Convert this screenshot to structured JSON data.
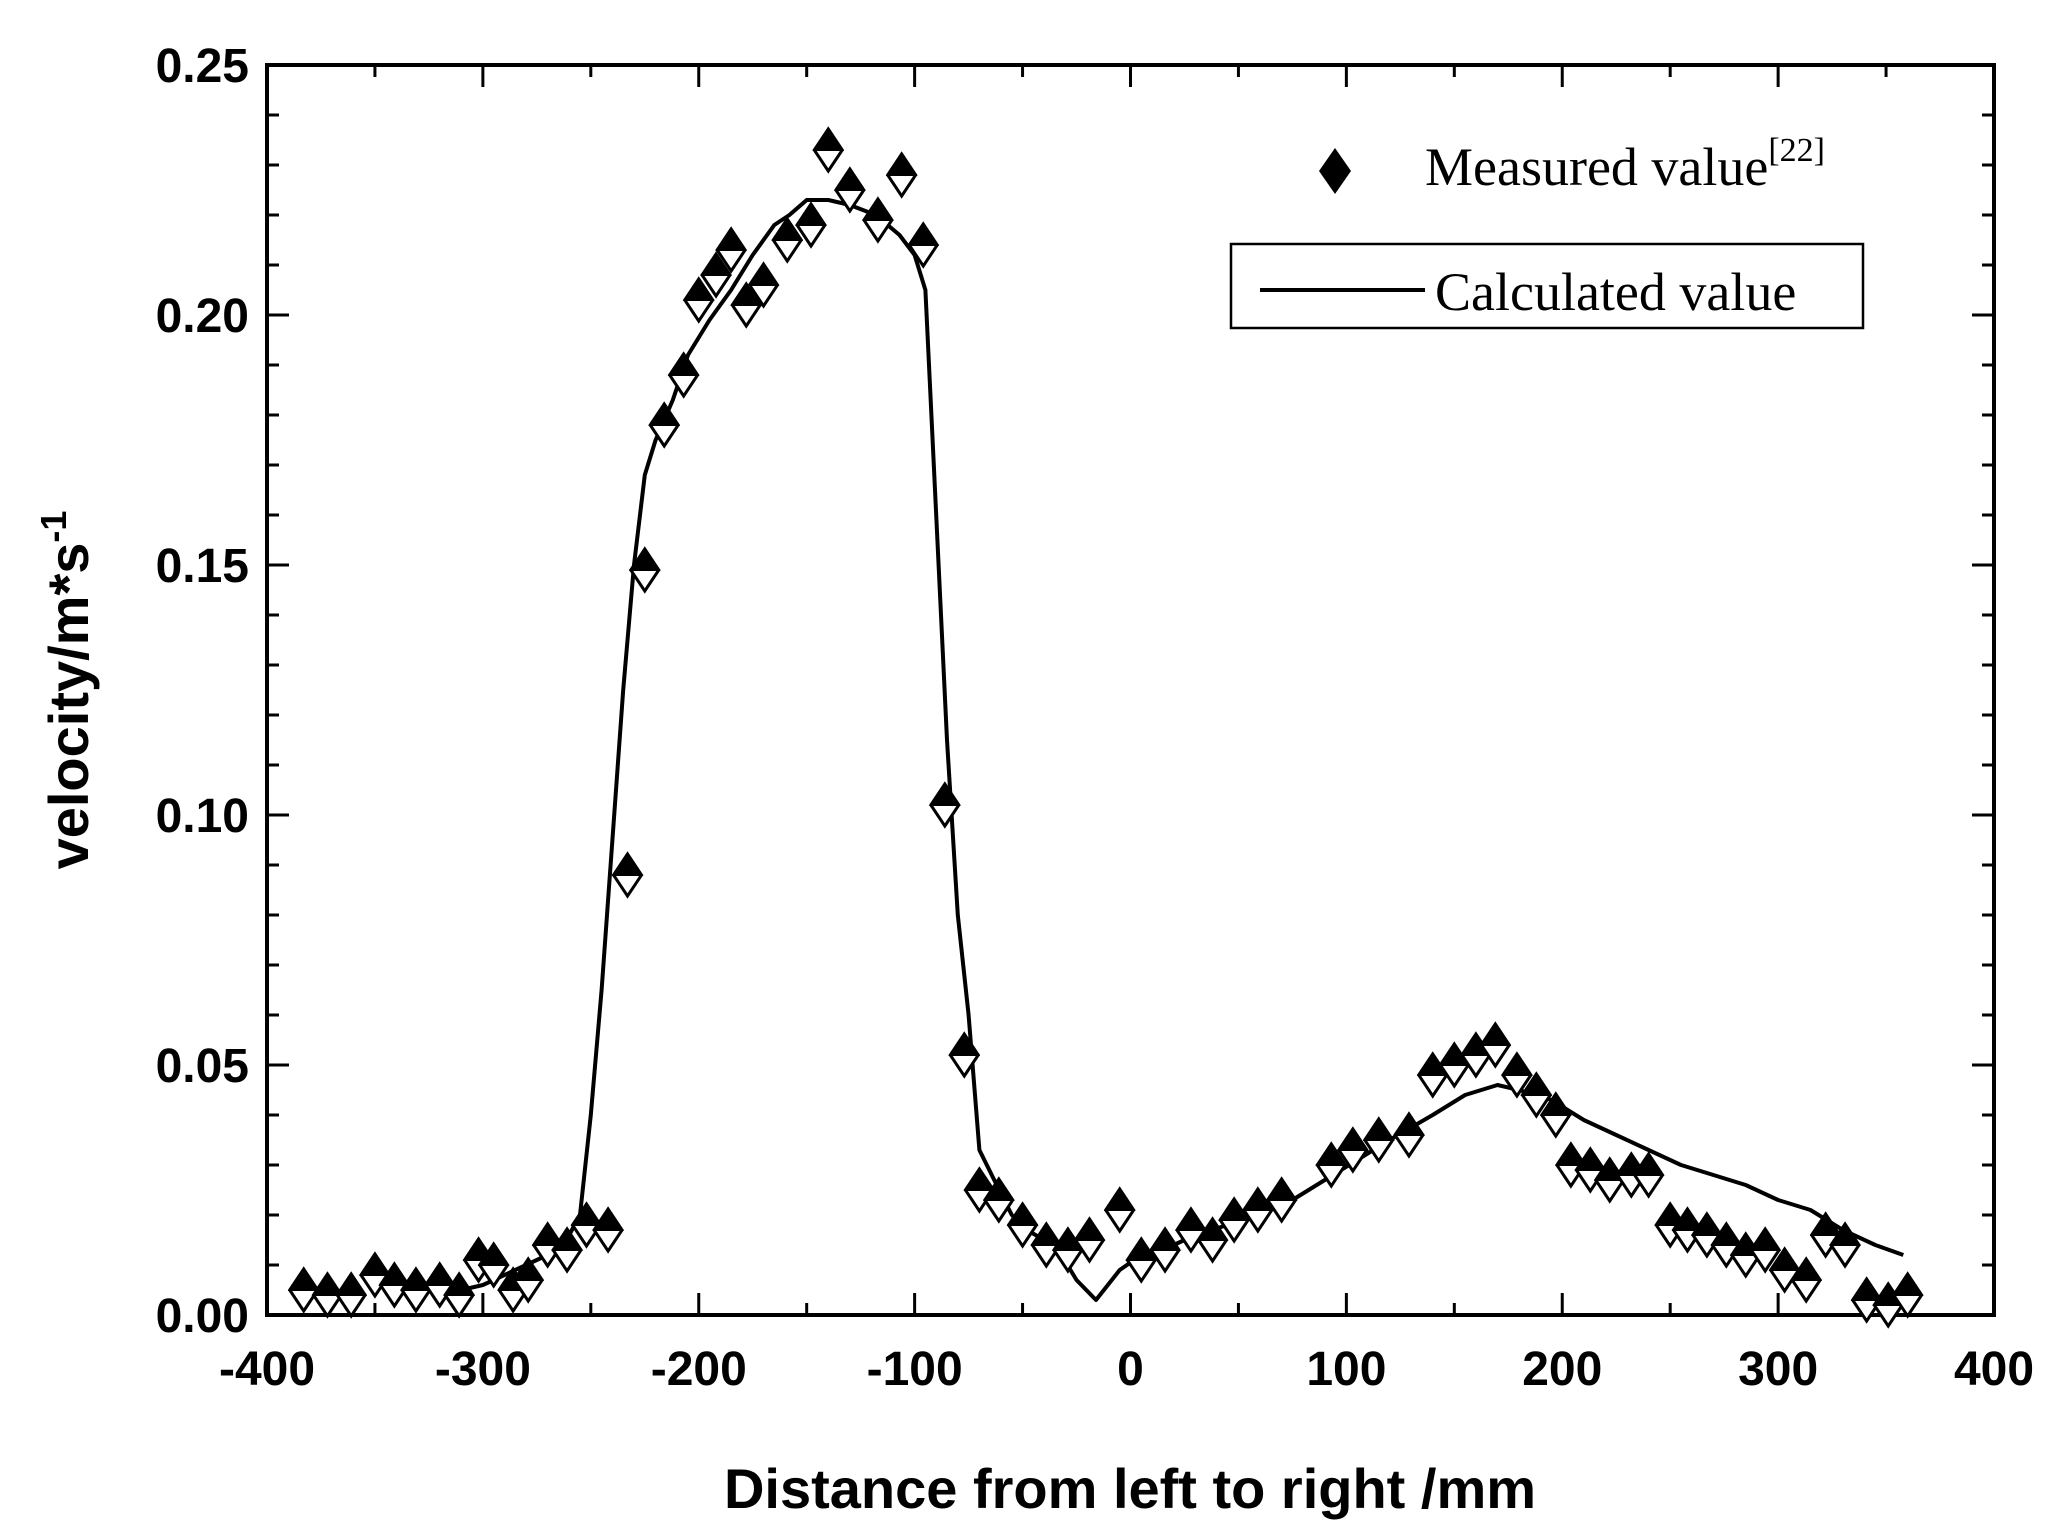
{
  "chart_data": {
    "type": "scatter",
    "title": "",
    "xlabel": "Distance from left to right /mm",
    "ylabel": "velocity/m*s",
    "ylabel_sup": "-1",
    "xlim": [
      -400,
      400
    ],
    "ylim": [
      0.0,
      0.25
    ],
    "xticks": [
      -400,
      -300,
      -200,
      -100,
      0,
      100,
      200,
      300,
      400
    ],
    "xtick_labels": [
      "-400",
      "-300",
      "-200",
      "-100",
      "0",
      "100",
      "200",
      "300",
      "400"
    ],
    "yticks": [
      0.0,
      0.05,
      0.1,
      0.15,
      0.2,
      0.25
    ],
    "ytick_labels": [
      "0.00",
      "0.05",
      "0.10",
      "0.15",
      "0.20",
      "0.25"
    ],
    "grid": false,
    "legend_position": "top-right",
    "series": [
      {
        "name": "Measured value",
        "name_sup": "[22]",
        "style": "diamond-markers",
        "color": "#000000",
        "points": [
          [
            -383,
            0.005
          ],
          [
            -372,
            0.004
          ],
          [
            -361,
            0.004
          ],
          [
            -350,
            0.008
          ],
          [
            -341,
            0.006
          ],
          [
            -331,
            0.005
          ],
          [
            -320,
            0.006
          ],
          [
            -311,
            0.004
          ],
          [
            -302,
            0.011
          ],
          [
            -295,
            0.01
          ],
          [
            -286,
            0.005
          ],
          [
            -279,
            0.007
          ],
          [
            -270,
            0.014
          ],
          [
            -261,
            0.013
          ],
          [
            -252,
            0.018
          ],
          [
            -242,
            0.017
          ],
          [
            -233,
            0.088
          ],
          [
            -225,
            0.149
          ],
          [
            -216,
            0.178
          ],
          [
            -207,
            0.188
          ],
          [
            -200,
            0.203
          ],
          [
            -192,
            0.208
          ],
          [
            -185,
            0.213
          ],
          [
            -178,
            0.202
          ],
          [
            -170,
            0.206
          ],
          [
            -159,
            0.215
          ],
          [
            -148,
            0.218
          ],
          [
            -140,
            0.233
          ],
          [
            -130,
            0.225
          ],
          [
            -117,
            0.219
          ],
          [
            -106,
            0.228
          ],
          [
            -96,
            0.214
          ],
          [
            -86,
            0.102
          ],
          [
            -77,
            0.052
          ],
          [
            -70,
            0.025
          ],
          [
            -61,
            0.023
          ],
          [
            -50,
            0.018
          ],
          [
            -39,
            0.014
          ],
          [
            -29,
            0.013
          ],
          [
            -19,
            0.015
          ],
          [
            -5,
            0.021
          ],
          [
            5,
            0.011
          ],
          [
            16,
            0.013
          ],
          [
            28,
            0.017
          ],
          [
            38,
            0.015
          ],
          [
            48,
            0.019
          ],
          [
            59,
            0.021
          ],
          [
            70,
            0.023
          ],
          [
            93,
            0.03
          ],
          [
            103,
            0.033
          ],
          [
            115,
            0.035
          ],
          [
            129,
            0.036
          ],
          [
            140,
            0.048
          ],
          [
            150,
            0.05
          ],
          [
            160,
            0.052
          ],
          [
            169,
            0.054
          ],
          [
            179,
            0.048
          ],
          [
            188,
            0.044
          ],
          [
            197,
            0.04
          ],
          [
            204,
            0.03
          ],
          [
            213,
            0.029
          ],
          [
            222,
            0.027
          ],
          [
            232,
            0.028
          ],
          [
            240,
            0.028
          ],
          [
            250,
            0.018
          ],
          [
            258,
            0.017
          ],
          [
            267,
            0.016
          ],
          [
            276,
            0.014
          ],
          [
            285,
            0.012
          ],
          [
            294,
            0.013
          ],
          [
            303,
            0.009
          ],
          [
            313,
            0.007
          ],
          [
            322,
            0.016
          ],
          [
            331,
            0.014
          ],
          [
            341,
            0.003
          ],
          [
            351,
            0.002
          ],
          [
            360,
            0.004
          ]
        ]
      },
      {
        "name": "Calculated value",
        "style": "line",
        "color": "#000000",
        "points": [
          [
            -320,
            0.004
          ],
          [
            -300,
            0.006
          ],
          [
            -285,
            0.009
          ],
          [
            -270,
            0.012
          ],
          [
            -260,
            0.016
          ],
          [
            -255,
            0.02
          ],
          [
            -250,
            0.04
          ],
          [
            -245,
            0.065
          ],
          [
            -240,
            0.095
          ],
          [
            -235,
            0.125
          ],
          [
            -230,
            0.15
          ],
          [
            -225,
            0.168
          ],
          [
            -220,
            0.175
          ],
          [
            -212,
            0.183
          ],
          [
            -205,
            0.192
          ],
          [
            -195,
            0.199
          ],
          [
            -185,
            0.205
          ],
          [
            -175,
            0.212
          ],
          [
            -165,
            0.218
          ],
          [
            -158,
            0.22
          ],
          [
            -150,
            0.223
          ],
          [
            -140,
            0.223
          ],
          [
            -130,
            0.222
          ],
          [
            -118,
            0.22
          ],
          [
            -107,
            0.216
          ],
          [
            -100,
            0.212
          ],
          [
            -95,
            0.205
          ],
          [
            -90,
            0.16
          ],
          [
            -85,
            0.115
          ],
          [
            -80,
            0.08
          ],
          [
            -75,
            0.06
          ],
          [
            -70,
            0.033
          ],
          [
            -62,
            0.026
          ],
          [
            -55,
            0.02
          ],
          [
            -48,
            0.017
          ],
          [
            -40,
            0.015
          ],
          [
            -32,
            0.012
          ],
          [
            -25,
            0.007
          ],
          [
            -16,
            0.003
          ],
          [
            -5,
            0.009
          ],
          [
            5,
            0.012
          ],
          [
            15,
            0.013
          ],
          [
            30,
            0.016
          ],
          [
            45,
            0.018
          ],
          [
            60,
            0.02
          ],
          [
            75,
            0.023
          ],
          [
            90,
            0.027
          ],
          [
            105,
            0.031
          ],
          [
            120,
            0.035
          ],
          [
            140,
            0.04
          ],
          [
            155,
            0.044
          ],
          [
            170,
            0.046
          ],
          [
            180,
            0.045
          ],
          [
            195,
            0.043
          ],
          [
            210,
            0.039
          ],
          [
            225,
            0.036
          ],
          [
            240,
            0.033
          ],
          [
            255,
            0.03
          ],
          [
            270,
            0.028
          ],
          [
            285,
            0.026
          ],
          [
            300,
            0.023
          ],
          [
            315,
            0.021
          ],
          [
            330,
            0.017
          ],
          [
            345,
            0.014
          ],
          [
            358,
            0.012
          ]
        ]
      }
    ]
  }
}
